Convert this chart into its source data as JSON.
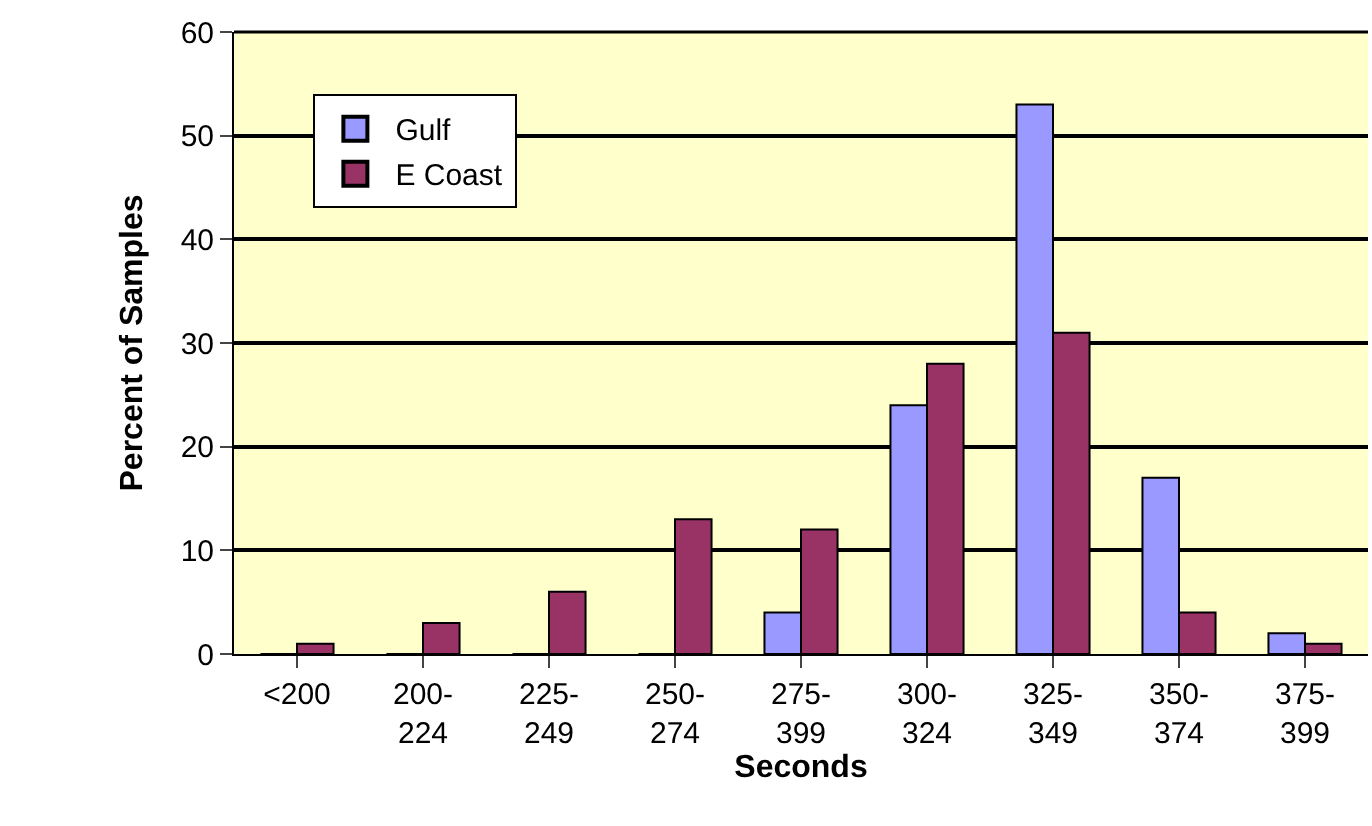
{
  "chart_data": {
    "type": "bar",
    "xlabel": "Seconds",
    "ylabel": "Percent of Samples",
    "categories": [
      "<200",
      "200-\n224",
      "225-\n249",
      "250-\n274",
      "275-\n399",
      "300-\n324",
      "325-\n349",
      "350-\n374",
      "375-\n399"
    ],
    "series": [
      {
        "name": "Gulf",
        "color": "#9999ff",
        "values": [
          0,
          0,
          0,
          0,
          4,
          24,
          53,
          17,
          2
        ]
      },
      {
        "name": "E Coast",
        "color": "#993366",
        "values": [
          1,
          3,
          6,
          13,
          12,
          28,
          31,
          4,
          1
        ]
      }
    ],
    "ylim": [
      0,
      60
    ],
    "yticks": [
      0,
      10,
      20,
      30,
      40,
      50,
      60
    ],
    "grid": "y",
    "legend": "top left"
  }
}
